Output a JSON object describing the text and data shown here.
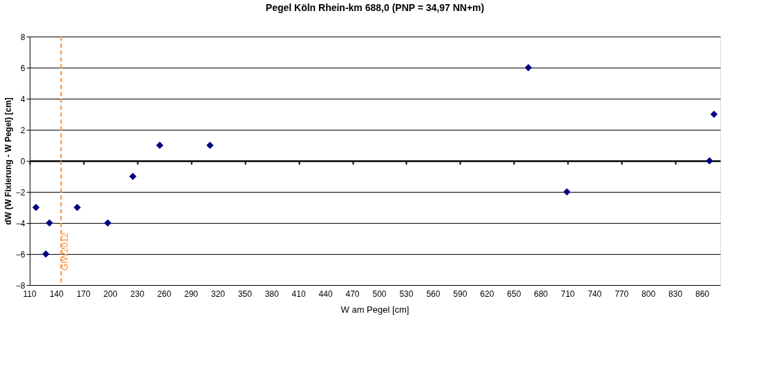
{
  "chart_data": {
    "type": "scatter",
    "title": "Pegel Köln Rhein-km 688,0 (PNP = 34,97 NN+m)",
    "xlabel": "W am Pegel [cm]",
    "ylabel": "dW (W Fixierung - W Pegel) [cm]",
    "x": [
      117,
      128,
      132,
      163,
      197,
      225,
      255,
      311,
      666,
      709,
      868,
      873
    ],
    "series": [
      {
        "color": "#000080",
        "values": [
          -3,
          -6,
          -4,
          -3,
          -4,
          -1,
          1,
          1,
          6,
          -2,
          0,
          3
        ]
      }
    ],
    "marker": "diamond",
    "grid": "y",
    "xlim": [
      110,
      880
    ],
    "xticks": [
      110,
      140,
      170,
      200,
      230,
      260,
      290,
      320,
      350,
      380,
      410,
      440,
      470,
      500,
      530,
      560,
      590,
      620,
      650,
      680,
      710,
      740,
      770,
      800,
      830,
      860
    ],
    "ylim": [
      -8,
      8
    ],
    "yticks": [
      -8,
      -6,
      -4,
      -2,
      0,
      2,
      4,
      6,
      8
    ],
    "ref_lines": [
      {
        "axis": "x",
        "value": 145,
        "label": "GIW2012",
        "color": "#ff8c32",
        "line_style": "dashed"
      }
    ]
  }
}
